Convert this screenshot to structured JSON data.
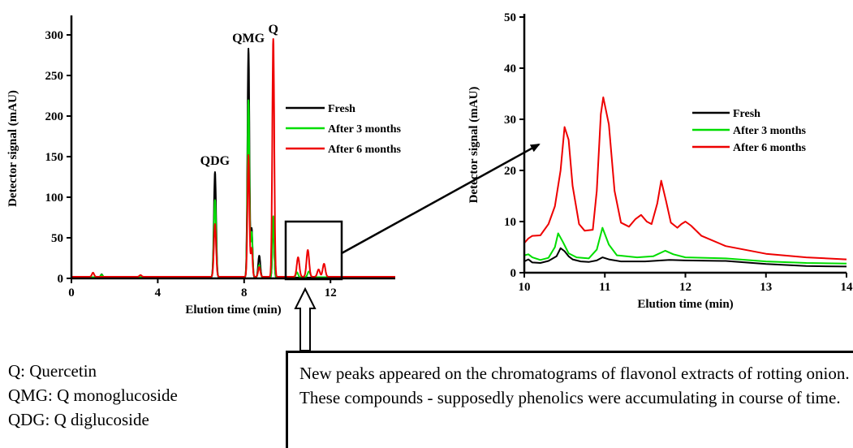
{
  "chart_data": [
    {
      "type": "line",
      "ylabel": "Detector signal (mAU)",
      "xlabel": "Elution time (min)",
      "xlim": [
        0,
        15
      ],
      "ylim": [
        0,
        320
      ],
      "xticks": [
        0,
        4,
        8,
        12
      ],
      "yticks": [
        0,
        50,
        100,
        150,
        200,
        250,
        300
      ],
      "legend_position": "right",
      "peak_labels": [
        {
          "text": "QDG",
          "x": 6.65,
          "y": 132
        },
        {
          "text": "QMG",
          "x": 8.2,
          "y": 283
        },
        {
          "text": "Q",
          "x": 9.35,
          "y": 294
        }
      ],
      "series": [
        {
          "name": "Fresh",
          "color": "#000000",
          "baseline": 1,
          "peaks": [
            [
              1.4,
              4,
              0.05
            ],
            [
              6.65,
              130,
              0.05
            ],
            [
              8.2,
              282,
              0.045
            ],
            [
              8.35,
              60,
              0.04
            ],
            [
              8.7,
              27,
              0.05
            ],
            [
              9.35,
              73,
              0.04
            ]
          ]
        },
        {
          "name": "After 3 months",
          "color": "#00dd00",
          "baseline": 1.5,
          "peaks": [
            [
              1.4,
              3,
              0.05
            ],
            [
              6.65,
              95,
              0.05
            ],
            [
              8.2,
              218,
              0.045
            ],
            [
              8.35,
              55,
              0.04
            ],
            [
              8.7,
              15,
              0.05
            ],
            [
              9.35,
              75,
              0.04
            ],
            [
              10.45,
              6,
              0.05
            ],
            [
              11.0,
              7,
              0.06
            ]
          ]
        },
        {
          "name": "After 6 months",
          "color": "#ee0000",
          "baseline": 2,
          "peaks": [
            [
              1.0,
              5,
              0.05
            ],
            [
              3.2,
              2,
              0.05
            ],
            [
              6.65,
              65,
              0.05
            ],
            [
              8.2,
              150,
              0.045
            ],
            [
              8.35,
              35,
              0.04
            ],
            [
              8.7,
              12,
              0.05
            ],
            [
              9.35,
              293,
              0.045
            ],
            [
              10.5,
              24,
              0.06
            ],
            [
              10.95,
              33,
              0.06
            ],
            [
              11.45,
              9,
              0.06
            ],
            [
              11.7,
              16,
              0.06
            ]
          ]
        }
      ]
    },
    {
      "type": "line",
      "ylabel": "Detector signal (mAU)",
      "xlabel": "Elution time (min)",
      "xlim": [
        10,
        14
      ],
      "ylim": [
        0,
        50
      ],
      "xticks": [
        10,
        11,
        12,
        13,
        14
      ],
      "yticks": [
        0,
        10,
        20,
        30,
        40,
        50
      ],
      "legend_position": "right",
      "series": [
        {
          "name": "Fresh",
          "color": "#000000",
          "points": [
            [
              10,
              2.2
            ],
            [
              10.05,
              2.6
            ],
            [
              10.1,
              2.0
            ],
            [
              10.2,
              1.9
            ],
            [
              10.3,
              2.3
            ],
            [
              10.4,
              3.2
            ],
            [
              10.45,
              4.8
            ],
            [
              10.5,
              4.2
            ],
            [
              10.55,
              3.2
            ],
            [
              10.6,
              2.6
            ],
            [
              10.7,
              2.2
            ],
            [
              10.8,
              2.1
            ],
            [
              10.9,
              2.4
            ],
            [
              10.97,
              3.0
            ],
            [
              11.05,
              2.6
            ],
            [
              11.2,
              2.2
            ],
            [
              11.5,
              2.2
            ],
            [
              11.7,
              2.4
            ],
            [
              11.8,
              2.5
            ],
            [
              12.0,
              2.4
            ],
            [
              12.5,
              2.3
            ],
            [
              13.0,
              1.7
            ],
            [
              13.5,
              1.3
            ],
            [
              14,
              1.2
            ]
          ]
        },
        {
          "name": "After 3 months",
          "color": "#00dd00",
          "points": [
            [
              10,
              3.4
            ],
            [
              10.05,
              3.6
            ],
            [
              10.1,
              3.0
            ],
            [
              10.2,
              2.5
            ],
            [
              10.3,
              2.9
            ],
            [
              10.38,
              5.0
            ],
            [
              10.42,
              7.7
            ],
            [
              10.48,
              6.0
            ],
            [
              10.55,
              3.8
            ],
            [
              10.65,
              3.0
            ],
            [
              10.8,
              2.8
            ],
            [
              10.9,
              4.5
            ],
            [
              10.97,
              8.8
            ],
            [
              11.05,
              5.5
            ],
            [
              11.15,
              3.4
            ],
            [
              11.4,
              3.0
            ],
            [
              11.6,
              3.2
            ],
            [
              11.75,
              4.3
            ],
            [
              11.85,
              3.6
            ],
            [
              12.0,
              3.0
            ],
            [
              12.5,
              2.8
            ],
            [
              13.0,
              2.2
            ],
            [
              13.5,
              1.9
            ],
            [
              14,
              1.8
            ]
          ]
        },
        {
          "name": "After 6 months",
          "color": "#ee0000",
          "points": [
            [
              10,
              5.8
            ],
            [
              10.05,
              6.7
            ],
            [
              10.1,
              7.2
            ],
            [
              10.2,
              7.3
            ],
            [
              10.3,
              9.5
            ],
            [
              10.38,
              13.0
            ],
            [
              10.45,
              20.0
            ],
            [
              10.5,
              28.5
            ],
            [
              10.55,
              26.0
            ],
            [
              10.6,
              17.0
            ],
            [
              10.68,
              9.5
            ],
            [
              10.75,
              8.2
            ],
            [
              10.85,
              8.4
            ],
            [
              10.9,
              16.0
            ],
            [
              10.95,
              31.0
            ],
            [
              10.98,
              34.3
            ],
            [
              11.05,
              29.0
            ],
            [
              11.12,
              16.0
            ],
            [
              11.2,
              9.8
            ],
            [
              11.3,
              9.0
            ],
            [
              11.38,
              10.5
            ],
            [
              11.45,
              11.3
            ],
            [
              11.52,
              10.0
            ],
            [
              11.58,
              9.5
            ],
            [
              11.65,
              13.5
            ],
            [
              11.7,
              18.0
            ],
            [
              11.76,
              14.0
            ],
            [
              11.82,
              9.8
            ],
            [
              11.9,
              8.8
            ],
            [
              11.95,
              9.5
            ],
            [
              12.0,
              10.0
            ],
            [
              12.07,
              9.2
            ],
            [
              12.2,
              7.2
            ],
            [
              12.5,
              5.2
            ],
            [
              13.0,
              3.7
            ],
            [
              13.5,
              3.0
            ],
            [
              14,
              2.6
            ]
          ]
        }
      ]
    }
  ],
  "definitions": [
    "Q: Quercetin",
    "QMG: Q monoglucoside",
    "QDG: Q diglucoside"
  ],
  "note": "New peaks appeared on the chromatograms of flavonol extracts of rotting onion. These compounds - supposedly phenolics were accumulating in course of time."
}
